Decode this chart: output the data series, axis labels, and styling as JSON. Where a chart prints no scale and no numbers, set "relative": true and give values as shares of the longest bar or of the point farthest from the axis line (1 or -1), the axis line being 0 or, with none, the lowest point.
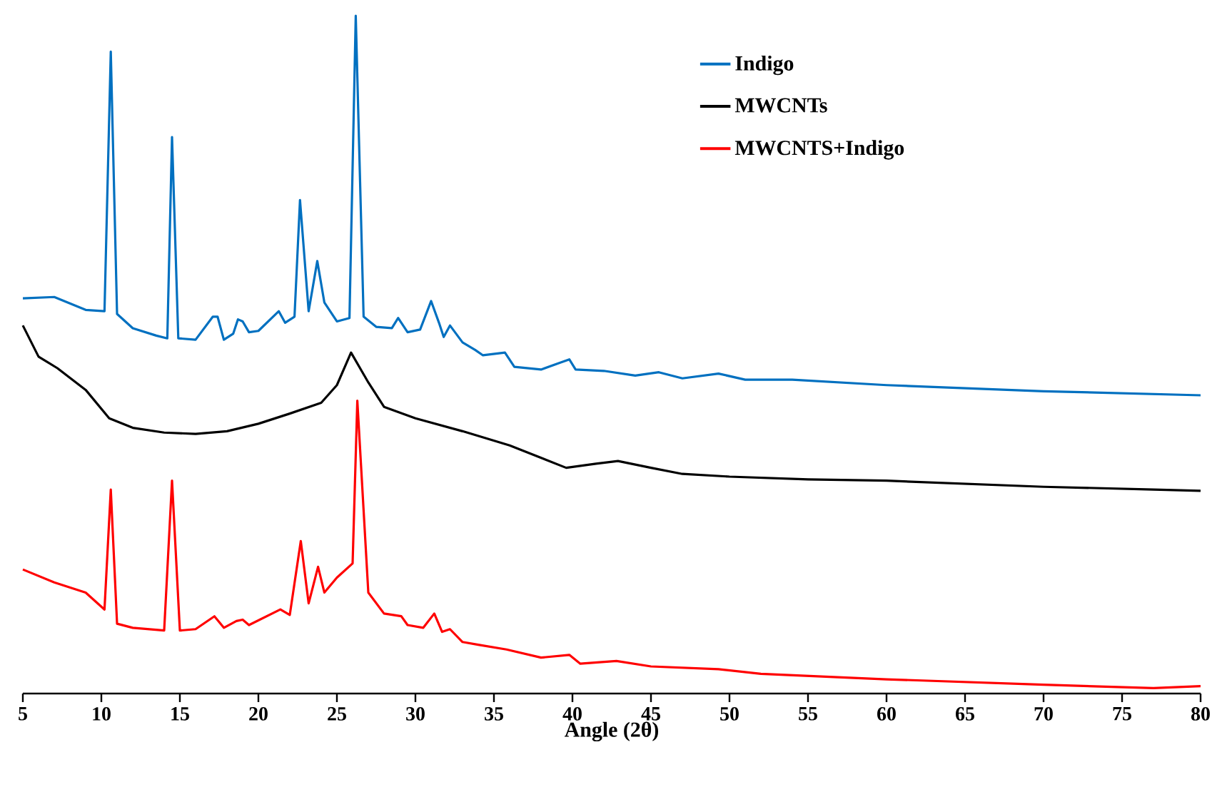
{
  "chart_data": {
    "type": "line",
    "xlabel": "Angle (2θ)",
    "relative": true,
    "xlim": [
      5,
      80
    ],
    "xticks": [
      5,
      10,
      15,
      20,
      25,
      30,
      35,
      40,
      45,
      50,
      55,
      60,
      65,
      70,
      75,
      80
    ],
    "legend": "top right",
    "grid": false,
    "marker": "none",
    "line_style": "solid",
    "series": [
      {
        "name": "Indigo",
        "color": "#0070c0",
        "x": [
          5,
          7,
          9,
          10.2,
          10.6,
          11,
          12,
          13.5,
          14.2,
          14.5,
          14.9,
          16,
          17.1,
          17.4,
          17.8,
          18.4,
          18.7,
          19,
          19.4,
          20,
          21.3,
          21.7,
          22.3,
          22.65,
          23.2,
          23.75,
          24.2,
          25,
          25.8,
          26.2,
          26.7,
          27.5,
          28.5,
          28.9,
          29.5,
          30.3,
          31,
          31.5,
          31.8,
          32.2,
          33,
          33.8,
          34.3,
          35.7,
          36.3,
          38,
          39.8,
          40.2,
          42,
          44,
          45.5,
          47,
          49.3,
          51,
          54,
          60,
          70,
          80
        ],
        "values": [
          0.583,
          0.585,
          0.566,
          0.564,
          0.947,
          0.56,
          0.539,
          0.528,
          0.524,
          0.821,
          0.524,
          0.522,
          0.556,
          0.556,
          0.522,
          0.531,
          0.552,
          0.549,
          0.533,
          0.535,
          0.564,
          0.547,
          0.556,
          0.728,
          0.564,
          0.638,
          0.577,
          0.549,
          0.554,
          1,
          0.556,
          0.541,
          0.539,
          0.554,
          0.533,
          0.537,
          0.579,
          0.547,
          0.526,
          0.543,
          0.518,
          0.507,
          0.499,
          0.503,
          0.482,
          0.478,
          0.493,
          0.478,
          0.476,
          0.469,
          0.474,
          0.465,
          0.472,
          0.463,
          0.463,
          0.455,
          0.446,
          0.44
        ]
      },
      {
        "name": "MWCNTs",
        "color": "#000000",
        "x": [
          5,
          6,
          7.2,
          9,
          10.5,
          12,
          14,
          16,
          18,
          20,
          22,
          24,
          25,
          25.9,
          27,
          28,
          30,
          33,
          36,
          39.6,
          41.5,
          42.9,
          45,
          47,
          50,
          55,
          60,
          70,
          77,
          80
        ],
        "values": [
          0.543,
          0.497,
          0.48,
          0.448,
          0.406,
          0.392,
          0.385,
          0.383,
          0.387,
          0.398,
          0.413,
          0.429,
          0.455,
          0.503,
          0.459,
          0.423,
          0.406,
          0.387,
          0.366,
          0.333,
          0.339,
          0.343,
          0.333,
          0.324,
          0.32,
          0.316,
          0.314,
          0.305,
          0.301,
          0.299
        ]
      },
      {
        "name": "MWCNTS+Indigo",
        "color": "#ff0000",
        "x": [
          5,
          7,
          9,
          10.2,
          10.6,
          11,
          12,
          14,
          14.5,
          15,
          16,
          17.2,
          17.8,
          18.6,
          19,
          19.4,
          21.4,
          22,
          22.7,
          23.2,
          23.8,
          24.2,
          25,
          26,
          26.3,
          27,
          28,
          29.1,
          29.5,
          30.5,
          31.2,
          31.7,
          32.2,
          33,
          34,
          35.8,
          38,
          39.8,
          40.5,
          42.8,
          45,
          49.3,
          52,
          60,
          70,
          77,
          80
        ],
        "values": [
          0.183,
          0.164,
          0.149,
          0.124,
          0.301,
          0.103,
          0.097,
          0.093,
          0.314,
          0.093,
          0.095,
          0.114,
          0.097,
          0.107,
          0.109,
          0.101,
          0.124,
          0.116,
          0.225,
          0.133,
          0.187,
          0.149,
          0.171,
          0.192,
          0.432,
          0.149,
          0.118,
          0.114,
          0.101,
          0.097,
          0.118,
          0.091,
          0.095,
          0.076,
          0.072,
          0.065,
          0.053,
          0.057,
          0.044,
          0.048,
          0.04,
          0.036,
          0.029,
          0.021,
          0.013,
          0.008,
          0.011
        ]
      }
    ]
  }
}
